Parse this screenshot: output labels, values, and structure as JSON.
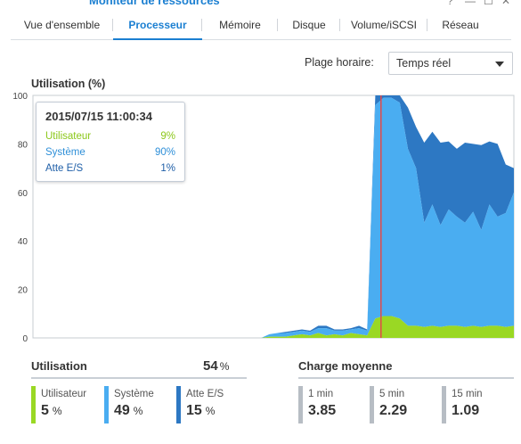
{
  "window": {
    "title": "Moniteur de ressources"
  },
  "tabs": [
    {
      "label": "Vue d'ensemble",
      "active": false
    },
    {
      "label": "Processeur",
      "active": true
    },
    {
      "label": "Mémoire",
      "active": false
    },
    {
      "label": "Disque",
      "active": false
    },
    {
      "label": "Volume/iSCSI",
      "active": false
    },
    {
      "label": "Réseau",
      "active": false
    }
  ],
  "range": {
    "label": "Plage horaire:",
    "value": "Temps réel"
  },
  "chart_data": {
    "type": "area",
    "title": "Utilisation (%)",
    "ylim": [
      0,
      100
    ],
    "yticks": [
      "0",
      "20",
      "40",
      "60",
      "80",
      "100"
    ],
    "stacked": true,
    "grid": false,
    "colors": {
      "user": "#9ad824",
      "system": "#4aadf1",
      "io": "#2d78c3",
      "cursor": "#e24a4a"
    },
    "x": [
      0,
      1,
      2,
      3,
      4,
      5,
      6,
      7,
      8,
      9,
      10,
      11,
      12,
      13,
      14,
      15,
      16,
      17,
      18,
      19,
      20,
      21,
      22,
      23,
      24,
      25,
      26,
      27,
      28,
      29,
      30,
      31,
      32,
      33,
      34,
      35,
      36,
      37,
      38,
      39,
      40,
      41,
      42,
      43,
      44,
      45,
      46,
      47,
      48,
      49,
      50,
      51,
      52,
      53,
      54,
      55,
      56,
      57,
      58,
      59
    ],
    "series": [
      {
        "name": "Utilisateur",
        "values": [
          0,
          0,
          0,
          0,
          0,
          0,
          0,
          0,
          0,
          0,
          0,
          0,
          0,
          0,
          0,
          0,
          0,
          0,
          0,
          0,
          0,
          0,
          0,
          0,
          0,
          0,
          0,
          0,
          0,
          0.5,
          0.5,
          0.5,
          1,
          1.5,
          1,
          2,
          1,
          1.5,
          1,
          2,
          1.5,
          1,
          8,
          9,
          9,
          8,
          5,
          5,
          4.5,
          5,
          4.5,
          5,
          5,
          4.5,
          5,
          4.5,
          5,
          5,
          4.5,
          5
        ]
      },
      {
        "name": "Système",
        "values": [
          0,
          0,
          0,
          0,
          0,
          0,
          0,
          0,
          0,
          0,
          0,
          0,
          0,
          0,
          0,
          0,
          0,
          0,
          0,
          0,
          0,
          0,
          0,
          0,
          0,
          0,
          0,
          0,
          0,
          1,
          1.5,
          1.5,
          1.5,
          1.5,
          1.5,
          2,
          3,
          1.5,
          2,
          1.5,
          2.5,
          2,
          88,
          90,
          90,
          89,
          73,
          65,
          43,
          50,
          42,
          48,
          45,
          43,
          47,
          40,
          50,
          45,
          47,
          55
        ]
      },
      {
        "name": "Atte E/S",
        "values": [
          0,
          0,
          0,
          0,
          0,
          0,
          0,
          0,
          0,
          0,
          0,
          0,
          0,
          0,
          0,
          0,
          0,
          0,
          0,
          0,
          0,
          0,
          0,
          0,
          0,
          0,
          0,
          0,
          0,
          0,
          0,
          0.5,
          0.5,
          0.5,
          0.5,
          1,
          1,
          0.5,
          0.5,
          0.5,
          1,
          0.5,
          4,
          1,
          1,
          3,
          17,
          17,
          33,
          30,
          34,
          28,
          28,
          33,
          28,
          35,
          26,
          30,
          20,
          10
        ]
      }
    ],
    "cursor_x": 42.7
  },
  "tooltip": {
    "time": "2015/07/15 11:00:34",
    "rows": [
      {
        "label": "Utilisateur",
        "value": "9%",
        "color": "#8cc81a"
      },
      {
        "label": "Système",
        "value": "90%",
        "color": "#2e8fd8"
      },
      {
        "label": "Atte E/S",
        "value": "1%",
        "color": "#1f5fa8"
      }
    ]
  },
  "utilisation": {
    "title": "Utilisation",
    "total": "54",
    "total_unit": "%",
    "items": [
      {
        "label": "Utilisateur",
        "value": "5",
        "unit": "%",
        "color": "#9ad824"
      },
      {
        "label": "Système",
        "value": "49",
        "unit": "%",
        "color": "#4aadf1"
      },
      {
        "label": "Atte E/S",
        "value": "15",
        "unit": "%",
        "color": "#2d78c3"
      }
    ]
  },
  "charge": {
    "title": "Charge moyenne",
    "items": [
      {
        "label": "1 min",
        "value": "3.85",
        "color": "#b7bdc4"
      },
      {
        "label": "5 min",
        "value": "2.29",
        "color": "#b7bdc4"
      },
      {
        "label": "15 min",
        "value": "1.09",
        "color": "#b7bdc4"
      }
    ]
  }
}
